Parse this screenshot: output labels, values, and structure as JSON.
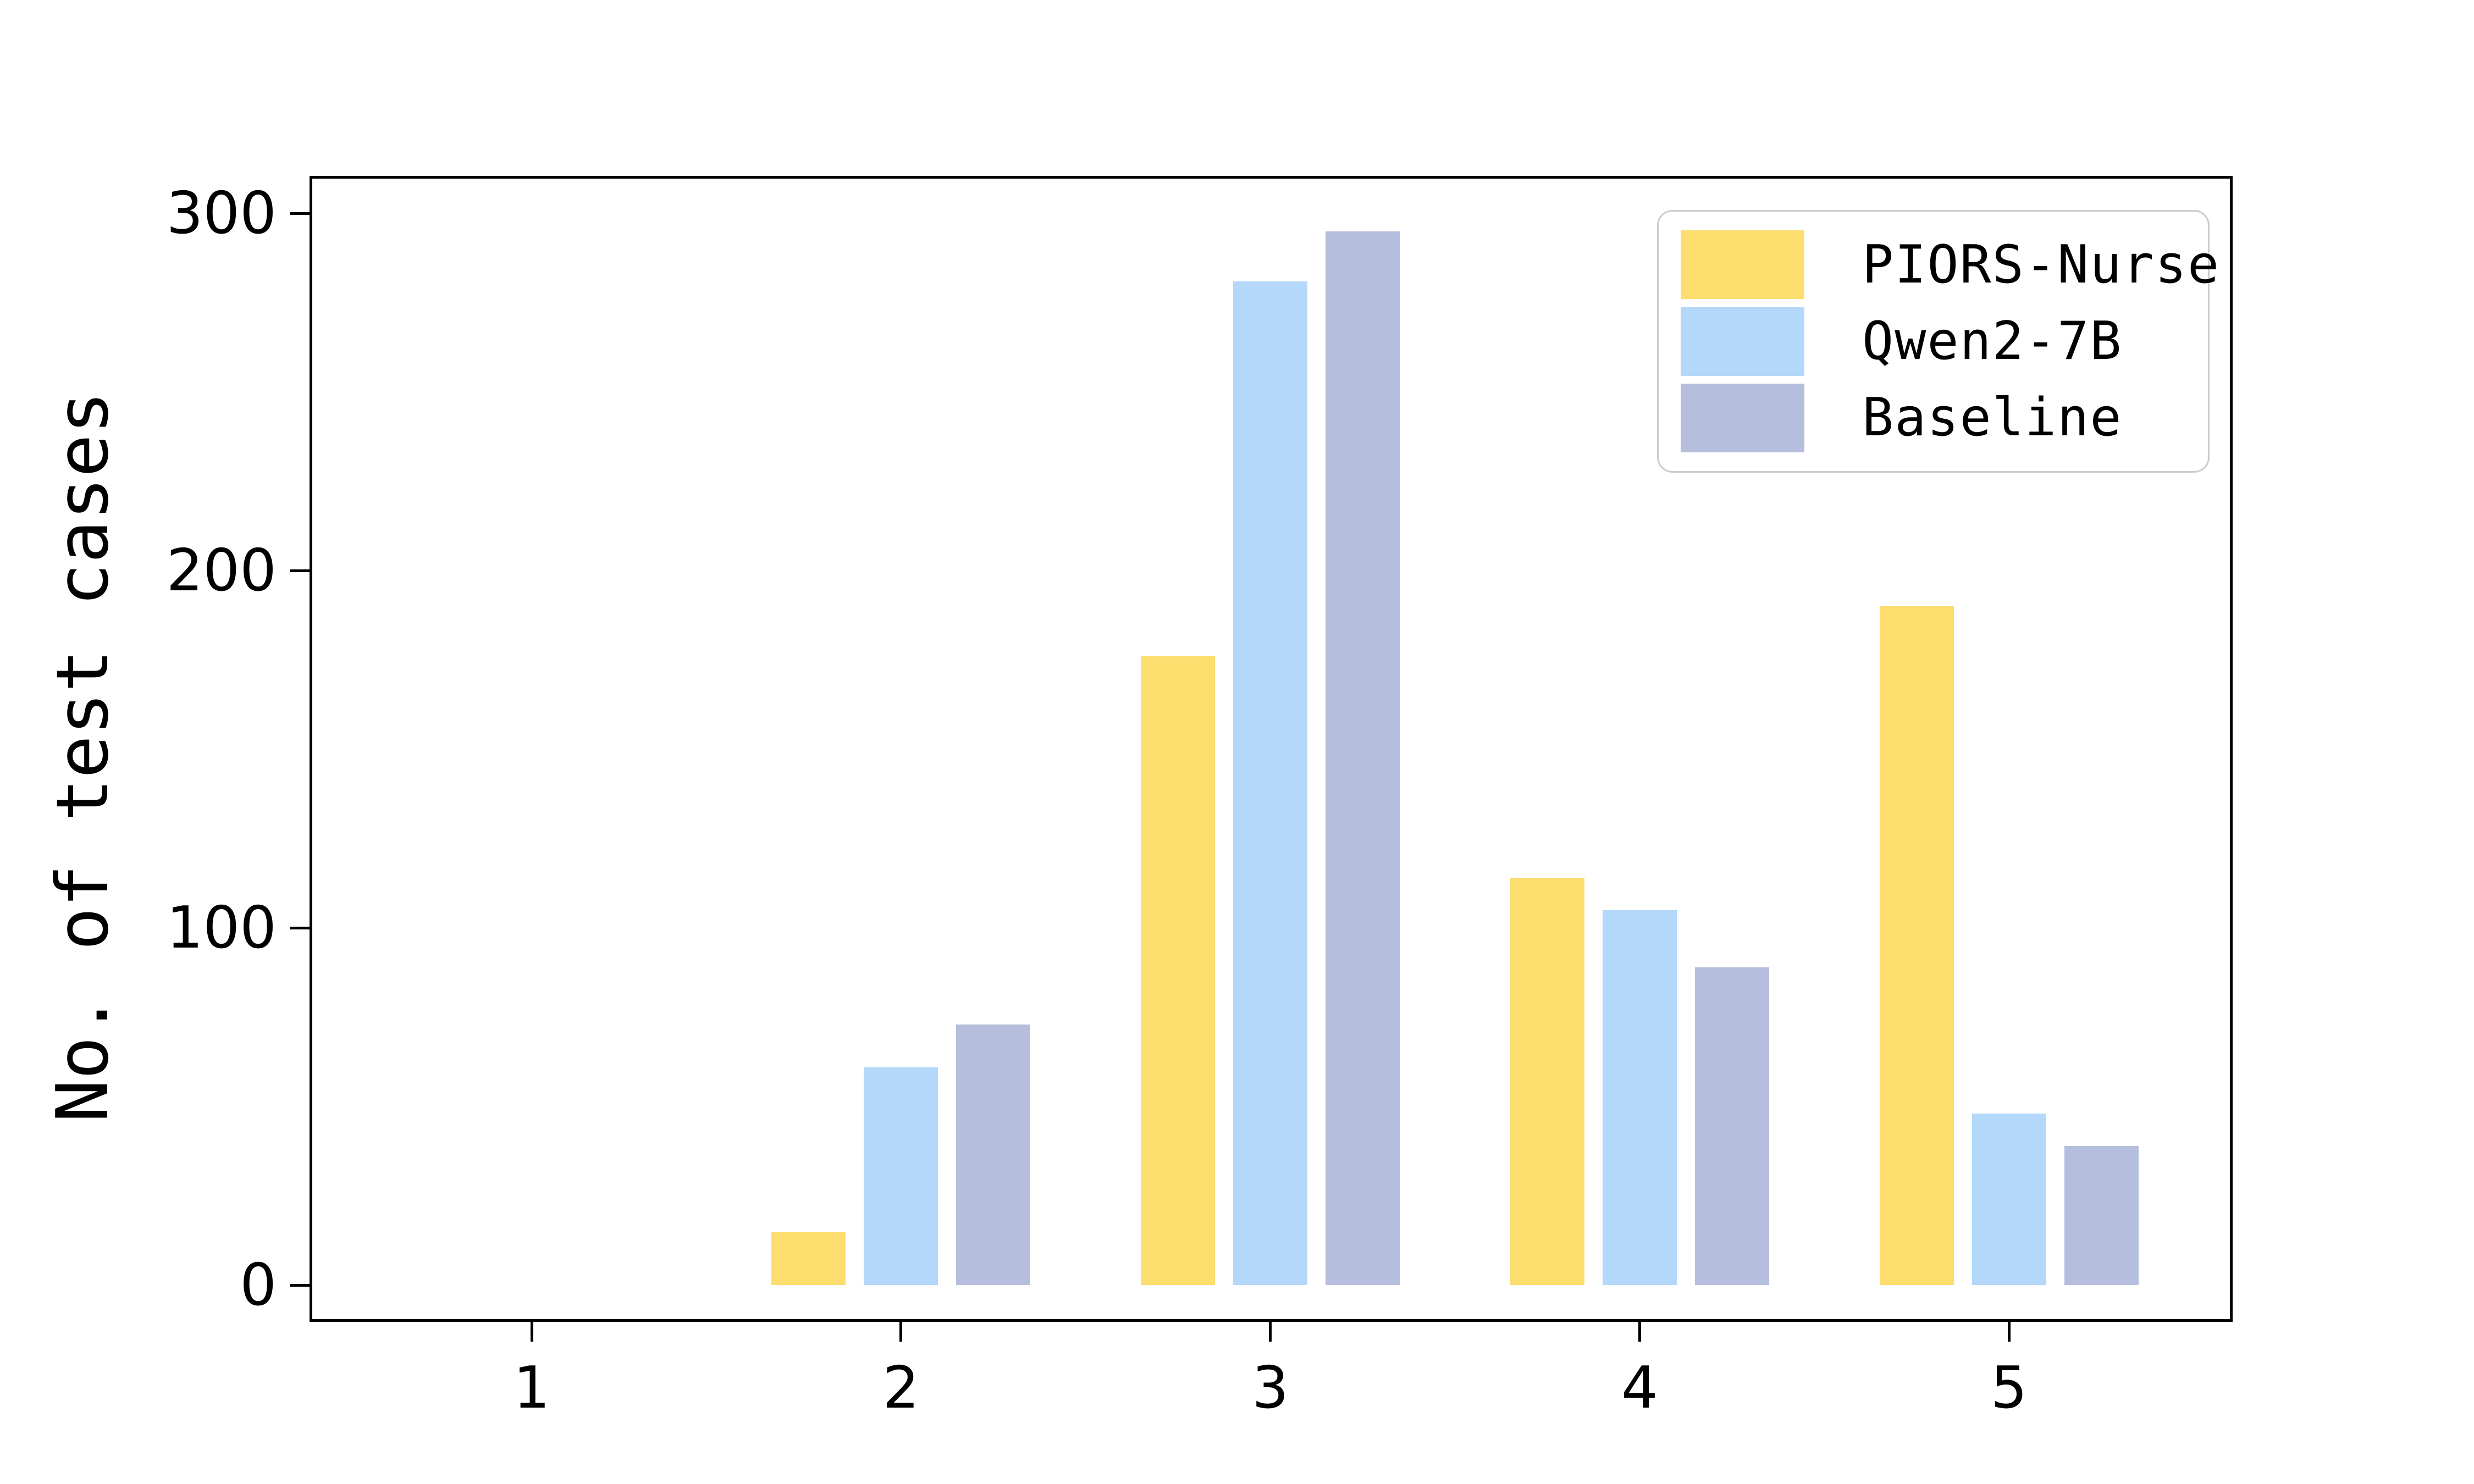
{
  "chart_data": {
    "type": "bar",
    "title": "",
    "xlabel": "",
    "ylabel": "No. of test cases",
    "categories": [
      "1",
      "2",
      "3",
      "4",
      "5"
    ],
    "series": [
      {
        "name": "PIORS-Nurse",
        "color": "#FCDD6E",
        "values": [
          0,
          15,
          176,
          114,
          190
        ]
      },
      {
        "name": "Qwen2-7B",
        "color": "#B3D8FA",
        "values": [
          0,
          61,
          281,
          105,
          48
        ]
      },
      {
        "name": "Baseline",
        "color": "#B5BEDC",
        "values": [
          0,
          73,
          295,
          89,
          39
        ]
      }
    ],
    "yticks": [
      0,
      100,
      200,
      300
    ],
    "ylim": [
      -10,
      310
    ],
    "xlim": [
      0.4,
      5.6
    ],
    "grid": false,
    "legend_position": "upper right",
    "bar_group_offsets": [
      -0.25,
      0,
      0.25
    ],
    "bar_width_units": 0.2
  },
  "colors": {
    "background": "#FFFFFF",
    "spine": "#000000",
    "tick": "#000000",
    "text": "#000000",
    "legend_border": "#CCCCCC"
  }
}
